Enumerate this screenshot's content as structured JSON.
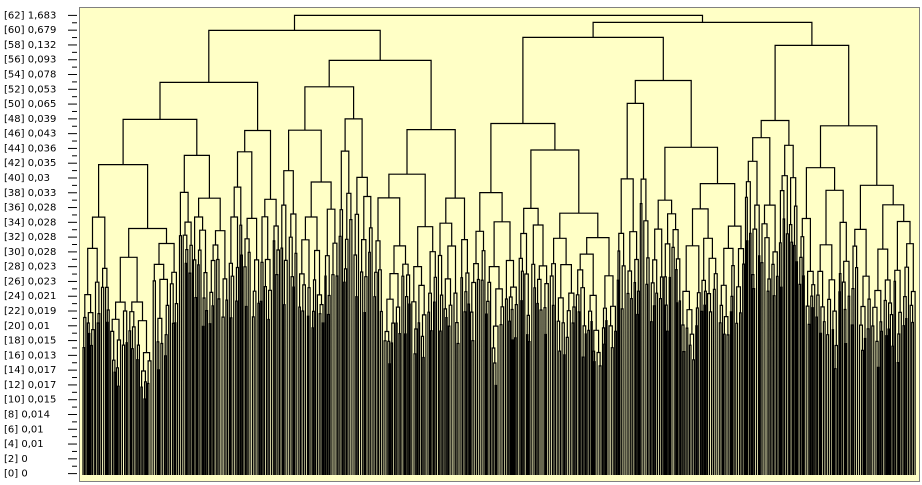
{
  "chart_data": {
    "type": "dendrogram",
    "ylim": [
      -1,
      63
    ],
    "yticks": [
      {
        "value": 0,
        "label": "[0] 0"
      },
      {
        "value": 2,
        "label": "[2] 0"
      },
      {
        "value": 4,
        "label": "[4] 0,01"
      },
      {
        "value": 6,
        "label": "[6] 0,01"
      },
      {
        "value": 8,
        "label": "[8] 0,014"
      },
      {
        "value": 10,
        "label": "[10] 0,015"
      },
      {
        "value": 12,
        "label": "[12] 0,017"
      },
      {
        "value": 14,
        "label": "[14] 0,017"
      },
      {
        "value": 16,
        "label": "[16] 0,013"
      },
      {
        "value": 18,
        "label": "[18] 0,015"
      },
      {
        "value": 20,
        "label": "[20] 0,01"
      },
      {
        "value": 22,
        "label": "[22] 0,019"
      },
      {
        "value": 24,
        "label": "[24] 0,021"
      },
      {
        "value": 26,
        "label": "[26] 0,023"
      },
      {
        "value": 28,
        "label": "[28] 0,023"
      },
      {
        "value": 30,
        "label": "[30] 0,028"
      },
      {
        "value": 32,
        "label": "[32] 0,028"
      },
      {
        "value": 34,
        "label": "[34] 0,028"
      },
      {
        "value": 36,
        "label": "[36] 0,028"
      },
      {
        "value": 38,
        "label": "[38] 0,033"
      },
      {
        "value": 40,
        "label": "[40] 0,03"
      },
      {
        "value": 42,
        "label": "[42] 0,035"
      },
      {
        "value": 44,
        "label": "[44] 0,036"
      },
      {
        "value": 46,
        "label": "[46] 0,043"
      },
      {
        "value": 48,
        "label": "[48] 0,039"
      },
      {
        "value": 50,
        "label": "[50] 0,065"
      },
      {
        "value": 52,
        "label": "[52] 0,053"
      },
      {
        "value": 54,
        "label": "[54] 0,078"
      },
      {
        "value": 56,
        "label": "[56] 0,093"
      },
      {
        "value": 58,
        "label": "[58] 0,132"
      },
      {
        "value": 60,
        "label": "[60] 0,679"
      },
      {
        "value": 62,
        "label": "[62] 1,683"
      }
    ]
  }
}
